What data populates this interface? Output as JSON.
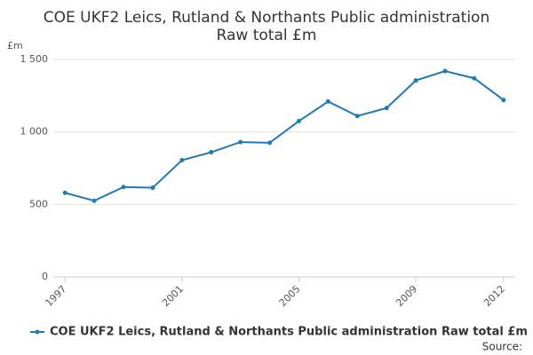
{
  "chart_data": {
    "type": "line",
    "title_lines": [
      "COE UKF2 Leics, Rutland & Northants Public administration",
      "Raw total £m"
    ],
    "y_axis_label": "£m",
    "x": [
      1997,
      1998,
      1999,
      2000,
      2001,
      2002,
      2003,
      2004,
      2005,
      2006,
      2007,
      2008,
      2009,
      2010,
      2011,
      2012
    ],
    "series": [
      {
        "name": "COE UKF2 Leics, Rutland & Northants Public administration Raw total £m",
        "color": "#1f7ab8",
        "values": [
          580,
          525,
          620,
          615,
          805,
          860,
          930,
          925,
          1075,
          1210,
          1110,
          1165,
          1355,
          1420,
          1370,
          1220
        ]
      }
    ],
    "xlim": [
      1996.6,
      2012.4
    ],
    "xticks": [
      1997,
      2001,
      2005,
      2009,
      2012
    ],
    "ylim": [
      0,
      1500
    ],
    "yticks": [
      0,
      500,
      {
        "value": 1000,
        "label": "1 000"
      },
      {
        "value": 1500,
        "label": "1 500"
      }
    ],
    "grid": true,
    "legend": "bottom",
    "source": "Source:"
  }
}
